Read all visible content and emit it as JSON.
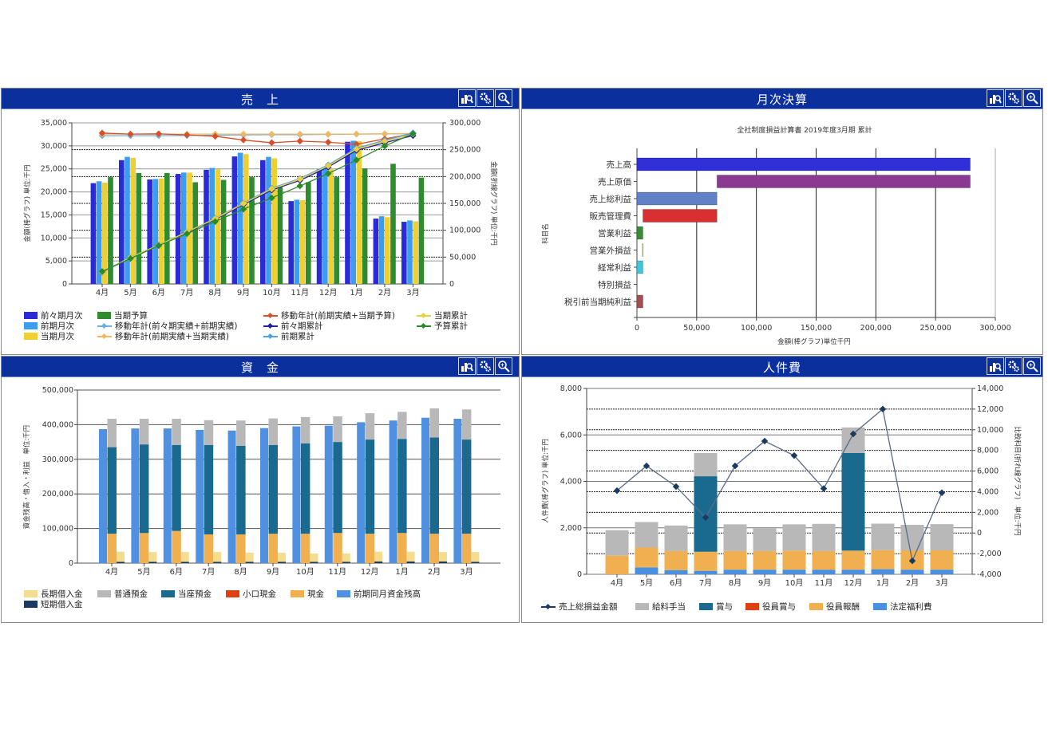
{
  "months": [
    "4月",
    "5月",
    "6月",
    "7月",
    "8月",
    "9月",
    "10月",
    "11月",
    "12月",
    "1月",
    "2月",
    "3月"
  ],
  "chart_data": [
    {
      "type": "bar+line",
      "title": "売　上",
      "ylabel_left": "金額(棒グラフ) 単位:千円",
      "ylabel_right": "金額(折線グラフ) 単位:千円",
      "ylim_left": [
        0,
        35000
      ],
      "ylim_right": [
        0,
        300000
      ],
      "yticks_left": [
        "0",
        "5,000",
        "10,000",
        "15,000",
        "20,000",
        "25,000",
        "30,000",
        "35,000"
      ],
      "yticks_right": [
        "0",
        "50,000",
        "100,000",
        "150,000",
        "200,000",
        "250,000",
        "300,000"
      ],
      "bar_series": [
        {
          "name": "前々期月次",
          "color": "#2a2ad8",
          "values": [
            21900,
            26900,
            22700,
            23900,
            24800,
            27700,
            26900,
            18000,
            24900,
            30900,
            14200,
            13500
          ]
        },
        {
          "name": "前期月次",
          "color": "#3c9cf0",
          "values": [
            22300,
            27600,
            22800,
            24200,
            25200,
            28500,
            27600,
            18300,
            25200,
            31100,
            14700,
            13800
          ]
        },
        {
          "name": "当期月次",
          "color": "#f0d030",
          "values": [
            22000,
            27400,
            22900,
            24200,
            24900,
            28200,
            27300,
            18200,
            24900,
            31000,
            14500,
            13600
          ]
        },
        {
          "name": "当期予算",
          "color": "#2e8b2e",
          "values": [
            23200,
            24100,
            24100,
            22100,
            22600,
            23200,
            21000,
            22100,
            23200,
            25100,
            26100,
            23100
          ]
        }
      ],
      "line_series": [
        {
          "name": "移動年計(前々期実績+前期実績)",
          "color": "#6aaee8",
          "values": [
            276000,
            276000,
            276000,
            276500,
            277000,
            277500,
            278000,
            278000,
            278500,
            279000,
            279500,
            280000
          ]
        },
        {
          "name": "移動年計(前期実績+当期実績)",
          "color": "#f0b860",
          "values": [
            279000,
            279000,
            279000,
            279000,
            279000,
            279000,
            279000,
            279000,
            279000,
            279000,
            279500,
            280000
          ]
        },
        {
          "name": "移動年計(前期実績+当期予算)",
          "color": "#d8502a",
          "values": [
            281000,
            279000,
            279500,
            277500,
            275000,
            268000,
            263000,
            266000,
            264000,
            260000,
            270000,
            280000
          ]
        },
        {
          "name": "前々期累計",
          "color": "#2020a0",
          "values": [
            21900,
            48800,
            71500,
            95400,
            120200,
            147900,
            174800,
            192800,
            217700,
            248600,
            262800,
            276300
          ]
        },
        {
          "name": "前期累計",
          "color": "#50a0e0",
          "values": [
            22300,
            49900,
            72700,
            96900,
            122100,
            150600,
            178200,
            196500,
            221700,
            252800,
            267500,
            281300
          ]
        },
        {
          "name": "当期累計",
          "color": "#e8d040",
          "values": [
            22000,
            49400,
            72300,
            96500,
            121400,
            149600,
            176900,
            195100,
            220000,
            251000,
            265500,
            279100
          ]
        },
        {
          "name": "予算累計",
          "color": "#2a8a2a",
          "values": [
            23200,
            47300,
            71400,
            93500,
            116100,
            139300,
            160300,
            182400,
            205600,
            230700,
            256800,
            279900
          ]
        }
      ],
      "legend": [
        {
          "label": "前々期月次",
          "kind": "box",
          "color": "#2a2ad8"
        },
        {
          "label": "前期月次",
          "kind": "box",
          "color": "#3c9cf0"
        },
        {
          "label": "当期月次",
          "kind": "box",
          "color": "#f0d030"
        },
        {
          "label": "当期予算",
          "kind": "box",
          "color": "#2e8b2e"
        },
        {
          "label": "移動年計(前々期実績+前期実績)",
          "kind": "line",
          "color": "#6aaee8"
        },
        {
          "label": "移動年計(前期実績+当期実績)",
          "kind": "line",
          "color": "#f0b860"
        },
        {
          "label": "移動年計(前期実績+当期予算)",
          "kind": "line",
          "color": "#d8502a"
        },
        {
          "label": "前々期累計",
          "kind": "line",
          "color": "#2020a0"
        },
        {
          "label": "前期累計",
          "kind": "line",
          "color": "#50a0e0"
        },
        {
          "label": "当期累計",
          "kind": "line",
          "color": "#e8d040"
        },
        {
          "label": "予算累計",
          "kind": "line",
          "color": "#2a8a2a"
        }
      ]
    },
    {
      "type": "bar",
      "orientation": "horizontal-floating",
      "title": "月次決算",
      "subtitle": "全社制度損益計算書 2019年度3月期 累計",
      "xlabel": "金額(棒グラフ)単位千円",
      "ylabel": "科目名",
      "xlim": [
        0,
        300000
      ],
      "xticks": [
        "0",
        "50,000",
        "100,000",
        "150,000",
        "200,000",
        "250,000",
        "300,000"
      ],
      "categories": [
        "売上高",
        "売上原価",
        "売上総利益",
        "販売管理費",
        "営業利益",
        "営業外損益",
        "経常利益",
        "特別損益",
        "税引前当期純利益"
      ],
      "ranges": [
        [
          0,
          279000
        ],
        [
          67000,
          279000
        ],
        [
          0,
          67000
        ],
        [
          5000,
          67000
        ],
        [
          0,
          5000
        ],
        [
          4500,
          5200
        ],
        [
          0,
          5000
        ],
        [
          0,
          0
        ],
        [
          0,
          5000
        ]
      ],
      "colors": [
        "#3030d8",
        "#8a3a90",
        "#6080c8",
        "#d83030",
        "#3a8a3a",
        "#e8d040",
        "#40c8d8",
        "#888888",
        "#a05050"
      ]
    },
    {
      "type": "bar",
      "stacked": true,
      "title": "資　金",
      "ylabel": "資金残高・借入・利益　単位:千円",
      "ylim": [
        0,
        500000
      ],
      "yticks": [
        "0",
        "100,000",
        "200,000",
        "300,000",
        "400,000",
        "500,000"
      ],
      "series": [
        {
          "name": "前期同月資金残高",
          "color": "#5090e0",
          "group": "prev",
          "values": [
            387000,
            389000,
            389000,
            385000,
            383000,
            390000,
            395000,
            397000,
            407000,
            412000,
            420000,
            417000
          ]
        },
        {
          "name": "現金",
          "color": "#f0b050",
          "group": "cur",
          "values": [
            85000,
            87000,
            93000,
            83000,
            83000,
            85000,
            85000,
            87000,
            85000,
            87000,
            85000,
            85000
          ]
        },
        {
          "name": "小口現金",
          "color": "#e04010",
          "group": "cur",
          "values": [
            0,
            0,
            0,
            0,
            0,
            0,
            0,
            0,
            0,
            0,
            0,
            0
          ]
        },
        {
          "name": "当座預金",
          "color": "#1a6a90",
          "group": "cur",
          "values": [
            250000,
            256000,
            248000,
            258000,
            256000,
            256000,
            261000,
            263000,
            272000,
            272000,
            278000,
            272000
          ]
        },
        {
          "name": "普通預金",
          "color": "#b8b8b8",
          "group": "cur",
          "values": [
            82000,
            74000,
            76000,
            72000,
            73000,
            77000,
            76000,
            74000,
            76000,
            78000,
            84000,
            87000
          ]
        },
        {
          "name": "短期借入金",
          "color": "#1a3a60",
          "group": "loan",
          "values": [
            4000,
            4000,
            4000,
            4000,
            4000,
            4000,
            4000,
            4000,
            5000,
            5000,
            5000,
            4000
          ]
        },
        {
          "name": "長期借入金",
          "color": "#f5dd90",
          "group": "loan",
          "values": [
            29000,
            28000,
            28000,
            28000,
            26000,
            26000,
            24000,
            24000,
            28000,
            28000,
            27000,
            28000
          ]
        }
      ],
      "legend": [
        {
          "label": "長期借入金",
          "color": "#f5dd90"
        },
        {
          "label": "普通預金",
          "color": "#b8b8b8"
        },
        {
          "label": "当座預金",
          "color": "#1a6a90"
        },
        {
          "label": "小口現金",
          "color": "#e04010"
        },
        {
          "label": "現金",
          "color": "#f0b050"
        },
        {
          "label": "前期同月資金残高",
          "color": "#5090e0"
        },
        {
          "label": "短期借入金",
          "color": "#1a3a60"
        }
      ]
    },
    {
      "type": "bar+line",
      "stacked": true,
      "title": "人件費",
      "ylabel_left": "人件費(棒グラフ) 単位:千円",
      "ylabel_right": "比較科目(折れ線グラフ)　単位:千円",
      "ylim_left": [
        0,
        8000
      ],
      "ylim_right": [
        -4000,
        14000
      ],
      "yticks_left": [
        "0",
        "2,000",
        "4,000",
        "6,000",
        "8,000"
      ],
      "yticks_right": [
        "-4,000",
        "-2,000",
        "0",
        "2,000",
        "4,000",
        "6,000",
        "8,000",
        "10,000",
        "12,000",
        "14,000"
      ],
      "series": [
        {
          "name": "法定福利費",
          "color": "#4a90e0",
          "values": [
            0,
            300,
            180,
            150,
            200,
            200,
            200,
            200,
            200,
            220,
            200,
            200
          ]
        },
        {
          "name": "役員報酬",
          "color": "#f0b050",
          "values": [
            800,
            850,
            820,
            820,
            800,
            800,
            820,
            800,
            820,
            820,
            830,
            830
          ]
        },
        {
          "name": "役員賞与",
          "color": "#e04010",
          "values": [
            0,
            0,
            0,
            0,
            0,
            0,
            0,
            0,
            0,
            0,
            0,
            0
          ]
        },
        {
          "name": "賞与",
          "color": "#1a6a90",
          "values": [
            0,
            0,
            0,
            3250,
            0,
            0,
            0,
            0,
            4200,
            0,
            0,
            0
          ]
        },
        {
          "name": "給料手当",
          "color": "#b8b8b8",
          "values": [
            1100,
            1100,
            1100,
            1000,
            1150,
            980,
            1130,
            1170,
            1100,
            1140,
            1100,
            1130
          ]
        }
      ],
      "line": {
        "name": "売上総損益金額",
        "color": "#1a3a60",
        "values": [
          4100,
          6500,
          4500,
          1500,
          6500,
          8900,
          7500,
          4300,
          9600,
          12000,
          -2700,
          3900
        ]
      },
      "legend": [
        {
          "label": "売上総損益金額",
          "kind": "line",
          "color": "#1a3a60"
        },
        {
          "label": "給料手当",
          "kind": "box",
          "color": "#b8b8b8"
        },
        {
          "label": "賞与",
          "kind": "box",
          "color": "#1a6a90"
        },
        {
          "label": "役員賞与",
          "kind": "box",
          "color": "#e04010"
        },
        {
          "label": "役員報酬",
          "kind": "box",
          "color": "#f0b050"
        },
        {
          "label": "法定福利費",
          "kind": "box",
          "color": "#4a90e0"
        }
      ]
    }
  ]
}
